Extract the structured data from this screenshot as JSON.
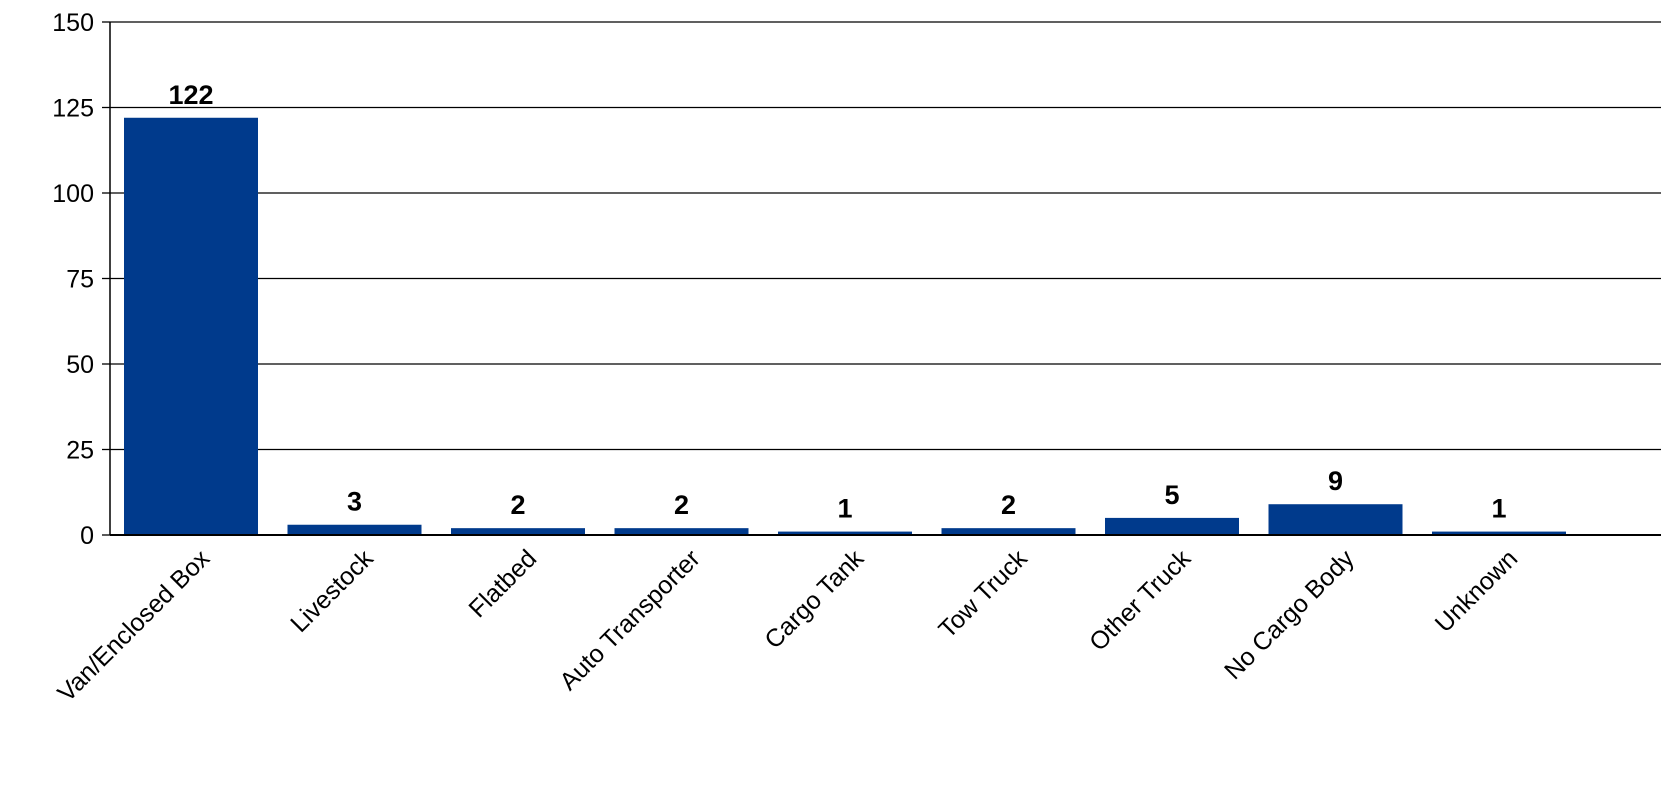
{
  "chart_data": {
    "type": "bar",
    "title": "",
    "xlabel": "",
    "ylabel": "",
    "categories": [
      "Van/Enclosed Box",
      "Livestock",
      "Flatbed",
      "Auto Transporter",
      "Cargo Tank",
      "Tow Truck",
      "Other Truck",
      "No Cargo Body",
      "Unknown"
    ],
    "values": [
      122,
      3,
      2,
      2,
      1,
      2,
      5,
      9,
      1
    ],
    "value_labels": [
      "122",
      "3",
      "2",
      "2",
      "1",
      "2",
      "5",
      "9",
      "1"
    ],
    "ylim": [
      0,
      150
    ],
    "yticks": [
      0,
      25,
      50,
      75,
      100,
      125,
      150
    ],
    "ytick_labels": [
      "0",
      "25",
      "50",
      "75",
      "100",
      "125",
      "150"
    ],
    "grid": true,
    "legend": "none",
    "colors": {
      "bar": "#003A8C",
      "grid": "#000000",
      "text": "#000000"
    }
  }
}
